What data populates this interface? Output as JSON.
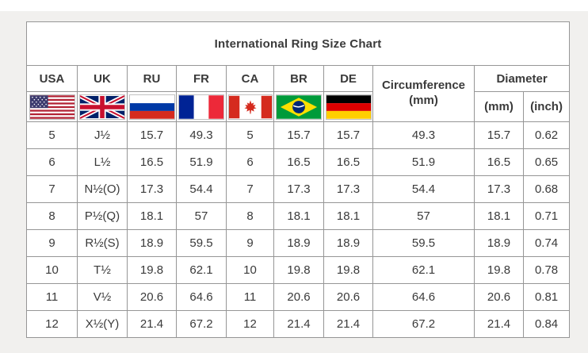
{
  "title": "International Ring Size Chart",
  "header": {
    "codes": [
      "USA",
      "UK",
      "RU",
      "FR",
      "CA",
      "BR",
      "DE"
    ],
    "circumference_line1": "Circumference",
    "circumference_line2": "(mm)",
    "diameter": "Diameter",
    "diameter_mm": "(mm)",
    "diameter_inch": "(inch)"
  },
  "flags": [
    {
      "icon": "usa-flag-icon",
      "country": "United States"
    },
    {
      "icon": "uk-flag-icon",
      "country": "United Kingdom"
    },
    {
      "icon": "russia-flag-icon",
      "country": "Russia"
    },
    {
      "icon": "france-flag-icon",
      "country": "France"
    },
    {
      "icon": "canada-flag-icon",
      "country": "Canada"
    },
    {
      "icon": "brazil-flag-icon",
      "country": "Brazil"
    },
    {
      "icon": "germany-flag-icon",
      "country": "Germany"
    }
  ],
  "colors": {
    "page_background": "#f1f0ee",
    "table_background": "#ffffff",
    "table_border": "#969696",
    "text": "#3a3a3a"
  },
  "chart_data": {
    "type": "table",
    "title": "International Ring Size Chart",
    "columns": [
      "USA",
      "UK",
      "RU",
      "FR",
      "CA",
      "BR",
      "DE",
      "Circumference (mm)",
      "Diameter (mm)",
      "Diameter (inch)"
    ],
    "rows": [
      [
        "5",
        "J½",
        "15.7",
        "49.3",
        "5",
        "15.7",
        "15.7",
        "49.3",
        "15.7",
        "0.62"
      ],
      [
        "6",
        "L½",
        "16.5",
        "51.9",
        "6",
        "16.5",
        "16.5",
        "51.9",
        "16.5",
        "0.65"
      ],
      [
        "7",
        "N½(O)",
        "17.3",
        "54.4",
        "7",
        "17.3",
        "17.3",
        "54.4",
        "17.3",
        "0.68"
      ],
      [
        "8",
        "P½(Q)",
        "18.1",
        "57",
        "8",
        "18.1",
        "18.1",
        "57",
        "18.1",
        "0.71"
      ],
      [
        "9",
        "R½(S)",
        "18.9",
        "59.5",
        "9",
        "18.9",
        "18.9",
        "59.5",
        "18.9",
        "0.74"
      ],
      [
        "10",
        "T½",
        "19.8",
        "62.1",
        "10",
        "19.8",
        "19.8",
        "62.1",
        "19.8",
        "0.78"
      ],
      [
        "11",
        "V½",
        "20.6",
        "64.6",
        "11",
        "20.6",
        "20.6",
        "64.6",
        "20.6",
        "0.81"
      ],
      [
        "12",
        "X½(Y)",
        "21.4",
        "67.2",
        "12",
        "21.4",
        "21.4",
        "67.2",
        "21.4",
        "0.84"
      ]
    ]
  }
}
